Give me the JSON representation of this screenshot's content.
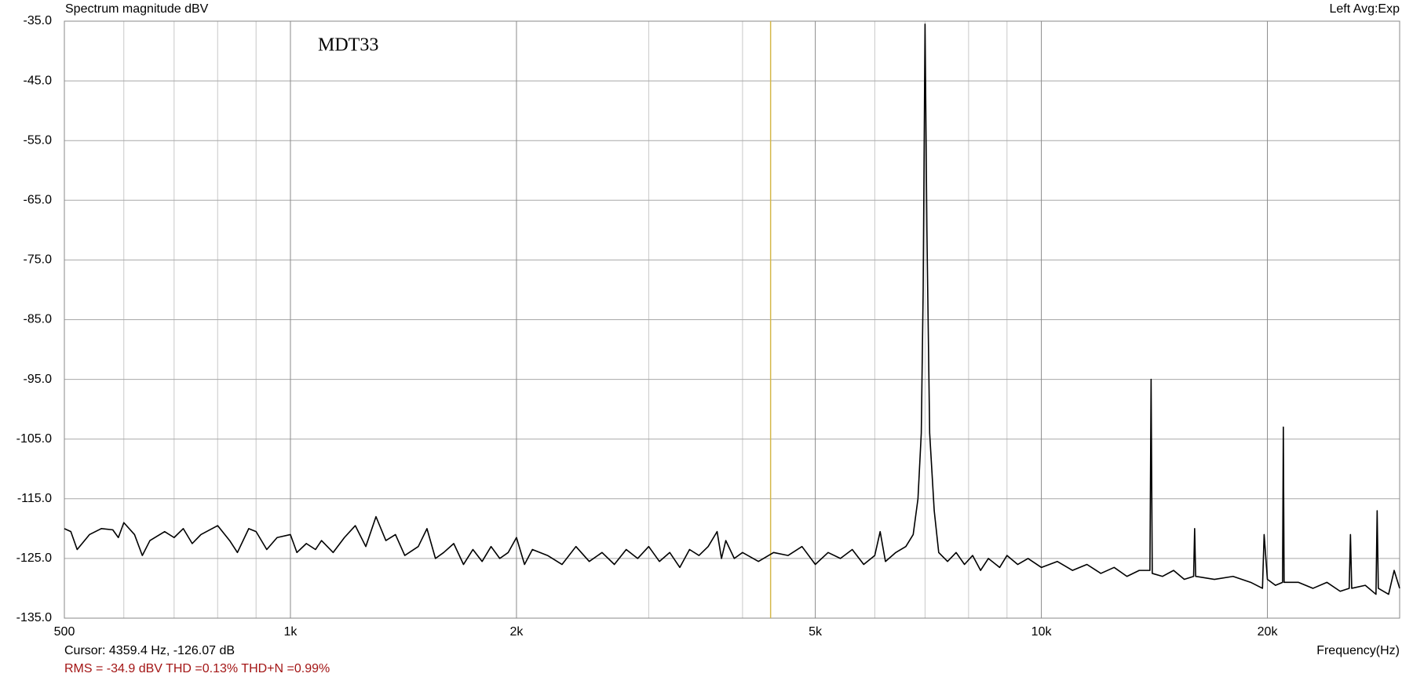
{
  "chart_data": {
    "type": "line",
    "title": "Spectrum magnitude dBV",
    "channel_info": "Left  Avg:Exp",
    "annotation": "MDT33",
    "x_label": "Frequency(Hz)",
    "cursor": {
      "label": "Cursor:  4359.4 Hz, -126.07 dB",
      "x": 4359.4,
      "color": "#d4b84a"
    },
    "stats": "RMS =  -34.9 dBV   THD =0.13%   THD+N =0.99%",
    "x_scale": "log",
    "grid": true,
    "color": "#000000",
    "xlim": [
      500,
      30000
    ],
    "ylim": [
      -135,
      -35
    ],
    "xticks": [
      500,
      {
        "value": 1000,
        "label": "1k"
      },
      {
        "value": 2000,
        "label": "2k"
      },
      {
        "value": 5000,
        "label": "5k"
      },
      {
        "value": 10000,
        "label": "10k"
      },
      {
        "value": 20000,
        "label": "20k"
      }
    ],
    "xgrid_minor": [
      600,
      700,
      800,
      900,
      3000,
      4000,
      6000,
      7000,
      8000,
      9000
    ],
    "yticks": [
      {
        "value": -35,
        "label": "-35.0"
      },
      {
        "value": -45,
        "label": "-45.0"
      },
      {
        "value": -55,
        "label": "-55.0"
      },
      {
        "value": -65,
        "label": "-65.0"
      },
      {
        "value": -75,
        "label": "-75.0"
      },
      {
        "value": -85,
        "label": "-85.0"
      },
      {
        "value": -95,
        "label": "-95.0"
      },
      {
        "value": -105,
        "label": "-105.0"
      },
      {
        "value": -115,
        "label": "-115.0"
      },
      {
        "value": -125,
        "label": "-125.0"
      },
      {
        "value": -135,
        "label": "-135.0"
      }
    ],
    "x": [
      500,
      510,
      520,
      540,
      560,
      580,
      590,
      600,
      620,
      635,
      650,
      680,
      700,
      720,
      740,
      760,
      800,
      830,
      850,
      880,
      900,
      930,
      960,
      1000,
      1020,
      1050,
      1080,
      1100,
      1140,
      1180,
      1220,
      1260,
      1300,
      1340,
      1380,
      1420,
      1480,
      1520,
      1560,
      1600,
      1650,
      1700,
      1750,
      1800,
      1850,
      1900,
      1950,
      2000,
      2050,
      2100,
      2200,
      2300,
      2400,
      2500,
      2600,
      2700,
      2800,
      2900,
      3000,
      3100,
      3200,
      3300,
      3400,
      3500,
      3600,
      3700,
      3750,
      3800,
      3900,
      4000,
      4200,
      4400,
      4600,
      4800,
      5000,
      5200,
      5400,
      5600,
      5800,
      6000,
      6100,
      6200,
      6400,
      6600,
      6750,
      6850,
      6920,
      6960,
      7000,
      7040,
      7100,
      7200,
      7300,
      7500,
      7700,
      7900,
      8100,
      8300,
      8500,
      8800,
      9000,
      9300,
      9600,
      10000,
      10500,
      11000,
      11500,
      12000,
      12500,
      13000,
      13500,
      13950,
      14000,
      14050,
      14500,
      15000,
      15500,
      15950,
      16000,
      16050,
      17000,
      18000,
      19000,
      19700,
      19800,
      20000,
      20500,
      20950,
      21000,
      21050,
      22000,
      23000,
      24000,
      25000,
      25700,
      25800,
      25900,
      27000,
      27900,
      28000,
      28100,
      29000,
      29500,
      30000
    ],
    "values": [
      -120,
      -120.5,
      -123.5,
      -121,
      -120,
      -120.2,
      -121.5,
      -119,
      -121,
      -124.5,
      -122,
      -120.5,
      -121.5,
      -120,
      -122.5,
      -121,
      -119.5,
      -122,
      -124,
      -120,
      -120.5,
      -123.5,
      -121.5,
      -121,
      -124,
      -122.5,
      -123.5,
      -122,
      -124,
      -121.5,
      -119.5,
      -123,
      -118,
      -122,
      -121,
      -124.5,
      -123,
      -120,
      -125,
      -124,
      -122.5,
      -126,
      -123.5,
      -125.5,
      -123,
      -125,
      -124,
      -121.5,
      -126,
      -123.5,
      -124.5,
      -126,
      -123,
      -125.5,
      -124,
      -126,
      -123.5,
      -125,
      -123,
      -125.5,
      -124,
      -126.5,
      -123.5,
      -124.5,
      -123,
      -120.5,
      -125,
      -122,
      -125,
      -124,
      -125.5,
      -124,
      -124.5,
      -123,
      -126,
      -124,
      -125,
      -123.5,
      -126,
      -124.5,
      -120.5,
      -125.5,
      -124,
      -123,
      -121,
      -115,
      -104,
      -80,
      -35.5,
      -70,
      -104,
      -117,
      -124,
      -125.5,
      -124,
      -126,
      -124.5,
      -127,
      -125,
      -126.5,
      -124.5,
      -126,
      -125,
      -126.5,
      -125.5,
      -127,
      -126,
      -127.5,
      -126.5,
      -128,
      -127,
      -127,
      -95,
      -127.5,
      -128,
      -127,
      -128.5,
      -128,
      -120,
      -128,
      -128.5,
      -128,
      -129,
      -130,
      -121,
      -128.5,
      -129.5,
      -129,
      -103,
      -129,
      -129,
      -130,
      -129,
      -130.5,
      -130,
      -121,
      -130,
      -129.5,
      -131,
      -117,
      -130,
      -131,
      -127,
      -130
    ]
  }
}
